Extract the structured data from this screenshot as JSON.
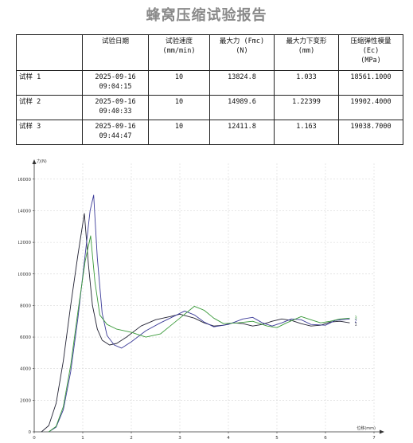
{
  "report": {
    "title": "蜂窝压缩试验报告"
  },
  "table": {
    "headers": [
      {
        "line1": "",
        "line2": "",
        "line3": ""
      },
      {
        "line1": "试验日期",
        "line2": "",
        "line3": ""
      },
      {
        "line1": "试验速度",
        "line2": "(mm/min)",
        "line3": ""
      },
      {
        "line1": "最大力 (Fmc)",
        "line2": "(N)",
        "line3": ""
      },
      {
        "line1": "最大力下变形",
        "line2": "(mm)",
        "line3": ""
      },
      {
        "line1": "压缩弹性模量",
        "line2": "(Ec)",
        "line3": "(MPa)"
      }
    ],
    "rows": [
      {
        "name": "试样 1",
        "date": "2025-09-16",
        "time": "09:04:15",
        "speed": "10",
        "fmax": "13824.8",
        "deform": "1.033",
        "modulus": "18561.1000"
      },
      {
        "name": "试样 2",
        "date": "2025-09-16",
        "time": "09:40:33",
        "speed": "10",
        "fmax": "14989.6",
        "deform": "1.22399",
        "modulus": "19902.4000"
      },
      {
        "name": "试样 3",
        "date": "2025-09-16",
        "time": "09:44:47",
        "speed": "10",
        "fmax": "12411.8",
        "deform": "1.163",
        "modulus": "19038.7000"
      }
    ]
  },
  "chart_data": {
    "type": "line",
    "title": "",
    "xlabel": "位移(mm)",
    "ylabel": "力(N)",
    "xlim": [
      0,
      7
    ],
    "ylim": [
      0,
      17000
    ],
    "xticks": [
      "0",
      "1",
      "2",
      "3",
      "4",
      "5",
      "6",
      "7"
    ],
    "yticks": [
      "0",
      "2000",
      "4000",
      "6000",
      "8000",
      "10000",
      "12000",
      "14000",
      "16000"
    ],
    "grid": true,
    "series": [
      {
        "name": "1",
        "color": "#222233",
        "points": [
          [
            0.15,
            0
          ],
          [
            0.3,
            400
          ],
          [
            0.45,
            1800
          ],
          [
            0.6,
            4500
          ],
          [
            0.75,
            8000
          ],
          [
            0.9,
            11200
          ],
          [
            1.033,
            13824.8
          ],
          [
            1.12,
            10500
          ],
          [
            1.2,
            8000
          ],
          [
            1.3,
            6500
          ],
          [
            1.4,
            5800
          ],
          [
            1.55,
            5500
          ],
          [
            1.7,
            5600
          ],
          [
            1.9,
            6000
          ],
          [
            2.2,
            6700
          ],
          [
            2.5,
            7100
          ],
          [
            2.8,
            7300
          ],
          [
            3.0,
            7450
          ],
          [
            3.3,
            7200
          ],
          [
            3.5,
            6900
          ],
          [
            3.7,
            6700
          ],
          [
            3.9,
            6750
          ],
          [
            4.1,
            6900
          ],
          [
            4.3,
            6850
          ],
          [
            4.5,
            6700
          ],
          [
            4.7,
            6800
          ],
          [
            4.9,
            7000
          ],
          [
            5.1,
            7150
          ],
          [
            5.3,
            7050
          ],
          [
            5.5,
            6850
          ],
          [
            5.7,
            6700
          ],
          [
            5.9,
            6750
          ],
          [
            6.1,
            6950
          ],
          [
            6.3,
            7000
          ],
          [
            6.5,
            6900
          ],
          [
            6.5,
            6900
          ]
        ]
      },
      {
        "name": "2",
        "color": "#3c3c99",
        "points": [
          [
            0.3,
            0
          ],
          [
            0.45,
            300
          ],
          [
            0.6,
            1400
          ],
          [
            0.75,
            3800
          ],
          [
            0.9,
            7200
          ],
          [
            1.05,
            11200
          ],
          [
            1.15,
            14000
          ],
          [
            1.224,
            14989.6
          ],
          [
            1.3,
            11000
          ],
          [
            1.4,
            7500
          ],
          [
            1.5,
            6100
          ],
          [
            1.65,
            5500
          ],
          [
            1.8,
            5300
          ],
          [
            2.0,
            5700
          ],
          [
            2.3,
            6400
          ],
          [
            2.6,
            6900
          ],
          [
            2.9,
            7350
          ],
          [
            3.1,
            7650
          ],
          [
            3.3,
            7400
          ],
          [
            3.5,
            6950
          ],
          [
            3.7,
            6650
          ],
          [
            4.0,
            6800
          ],
          [
            4.3,
            7150
          ],
          [
            4.5,
            7250
          ],
          [
            4.7,
            6900
          ],
          [
            4.9,
            6700
          ],
          [
            5.1,
            6900
          ],
          [
            5.3,
            7150
          ],
          [
            5.5,
            7100
          ],
          [
            5.7,
            6800
          ],
          [
            6.0,
            6750
          ],
          [
            6.2,
            7050
          ],
          [
            6.5,
            7150
          ]
        ]
      },
      {
        "name": "3",
        "color": "#3a9a3a",
        "points": [
          [
            0.3,
            0
          ],
          [
            0.45,
            350
          ],
          [
            0.6,
            1600
          ],
          [
            0.75,
            4200
          ],
          [
            0.9,
            7600
          ],
          [
            1.05,
            10800
          ],
          [
            1.163,
            12411.8
          ],
          [
            1.25,
            9500
          ],
          [
            1.35,
            7400
          ],
          [
            1.5,
            6800
          ],
          [
            1.7,
            6500
          ],
          [
            2.0,
            6300
          ],
          [
            2.3,
            6000
          ],
          [
            2.6,
            6200
          ],
          [
            2.8,
            6700
          ],
          [
            3.0,
            7200
          ],
          [
            3.2,
            7700
          ],
          [
            3.3,
            7950
          ],
          [
            3.5,
            7700
          ],
          [
            3.7,
            7200
          ],
          [
            3.9,
            6850
          ],
          [
            4.2,
            6900
          ],
          [
            4.5,
            7000
          ],
          [
            4.8,
            6700
          ],
          [
            5.0,
            6600
          ],
          [
            5.2,
            6900
          ],
          [
            5.5,
            7300
          ],
          [
            5.7,
            7100
          ],
          [
            5.9,
            6900
          ],
          [
            6.1,
            7000
          ],
          [
            6.3,
            7150
          ],
          [
            6.5,
            7200
          ]
        ]
      }
    ]
  }
}
